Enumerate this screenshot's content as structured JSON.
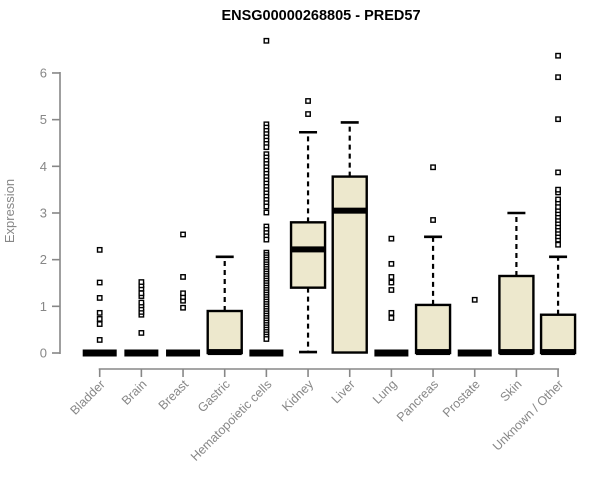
{
  "chart_data": {
    "type": "box",
    "title": "ENSG00000268805 - PRED57",
    "ylabel": "Expression",
    "xlabel": "",
    "ylim": [
      0,
      6.8
    ],
    "yticks": [
      0,
      1,
      2,
      3,
      4,
      5,
      6
    ],
    "grid": false,
    "legend": "none",
    "categories": [
      "Bladder",
      "Brain",
      "Breast",
      "Gastric",
      "Hematopoietic cells",
      "Kidney",
      "Liver",
      "Lung",
      "Pancreas",
      "Prostate",
      "Skin",
      "Unknown / Other"
    ],
    "series": [
      {
        "name": "Bladder",
        "lo": 0,
        "q1": 0,
        "median": 0.02,
        "q3": 0.05,
        "hi": 0.05,
        "outliers": [
          0.28,
          0.62,
          0.73,
          0.86,
          1.18,
          1.51,
          2.21
        ]
      },
      {
        "name": "Brain",
        "lo": 0,
        "q1": 0,
        "median": 0.02,
        "q3": 0.05,
        "hi": 0.05,
        "outliers": [
          0.43,
          0.82,
          0.88,
          0.95,
          1.02,
          1.08,
          1.22,
          1.28,
          1.38,
          1.45,
          1.52
        ]
      },
      {
        "name": "Breast",
        "lo": 0,
        "q1": 0,
        "median": 0.02,
        "q3": 0.05,
        "hi": 0.05,
        "outliers": [
          0.97,
          1.12,
          1.2,
          1.28,
          1.63,
          2.54
        ]
      },
      {
        "name": "Gastric",
        "lo": 0,
        "q1": 0,
        "median": 0.02,
        "q3": 0.9,
        "hi": 2.06,
        "outliers": []
      },
      {
        "name": "Hematopoietic cells",
        "lo": 0,
        "q1": 0,
        "median": 0.02,
        "q3": 0.05,
        "hi": 0.05,
        "outliers": [
          6.69,
          4.9,
          4.83,
          4.76,
          4.69,
          4.62,
          4.55,
          4.48,
          4.41,
          4.26,
          4.19,
          4.12,
          4.05,
          3.98,
          3.91,
          3.84,
          3.77,
          3.7,
          3.63,
          3.56,
          3.49,
          3.42,
          3.35,
          3.28,
          3.21,
          3.14,
          3.01,
          2.71,
          2.64,
          2.57,
          2.5,
          2.43,
          2.15,
          2.1,
          2.05,
          2.0,
          1.95,
          1.9,
          1.85,
          1.8,
          1.75,
          1.7,
          1.65,
          1.6,
          1.55,
          1.5,
          1.45,
          1.4,
          1.35,
          1.3,
          1.25,
          1.2,
          1.15,
          1.1,
          1.05,
          1.0,
          0.95,
          0.9,
          0.85,
          0.8,
          0.75,
          0.7,
          0.65,
          0.6,
          0.55,
          0.5,
          0.45,
          0.4,
          0.35,
          0.3
        ]
      },
      {
        "name": "Kidney",
        "lo": 0.02,
        "q1": 1.4,
        "median": 2.22,
        "q3": 2.8,
        "hi": 4.73,
        "outliers": [
          5.12,
          5.4
        ]
      },
      {
        "name": "Liver",
        "lo": 0.01,
        "q1": 0.01,
        "median": 3.05,
        "q3": 3.78,
        "hi": 4.94,
        "outliers": []
      },
      {
        "name": "Lung",
        "lo": 0,
        "q1": 0,
        "median": 0.02,
        "q3": 0.05,
        "hi": 0.05,
        "outliers": [
          0.75,
          0.86,
          1.35,
          1.51,
          1.63,
          1.91,
          2.45
        ]
      },
      {
        "name": "Pancreas",
        "lo": 0,
        "q1": 0,
        "median": 0.02,
        "q3": 1.03,
        "hi": 2.49,
        "outliers": [
          2.85,
          3.98
        ]
      },
      {
        "name": "Prostate",
        "lo": 0,
        "q1": 0,
        "median": 0.02,
        "q3": 0.05,
        "hi": 0.05,
        "outliers": [
          1.14
        ]
      },
      {
        "name": "Skin",
        "lo": 0,
        "q1": 0,
        "median": 0.02,
        "q3": 1.65,
        "hi": 3.0,
        "outliers": []
      },
      {
        "name": "Unknown / Other",
        "lo": 0,
        "q1": 0,
        "median": 0.02,
        "q3": 0.82,
        "hi": 2.06,
        "outliers": [
          2.32,
          2.43,
          2.5,
          2.57,
          2.64,
          2.71,
          2.78,
          2.85,
          2.92,
          2.99,
          3.06,
          3.13,
          3.22,
          3.29,
          3.44,
          3.5,
          3.87,
          5.01,
          5.91,
          6.37
        ]
      }
    ],
    "colors": {
      "box_fill": "#EDE8CD",
      "box_stroke": "#000000",
      "median": "#000000",
      "whisker": "#000000",
      "outlier_stroke": "#000000",
      "axis": "#878787",
      "title": "#000000",
      "background": "#FFFFFF"
    }
  }
}
